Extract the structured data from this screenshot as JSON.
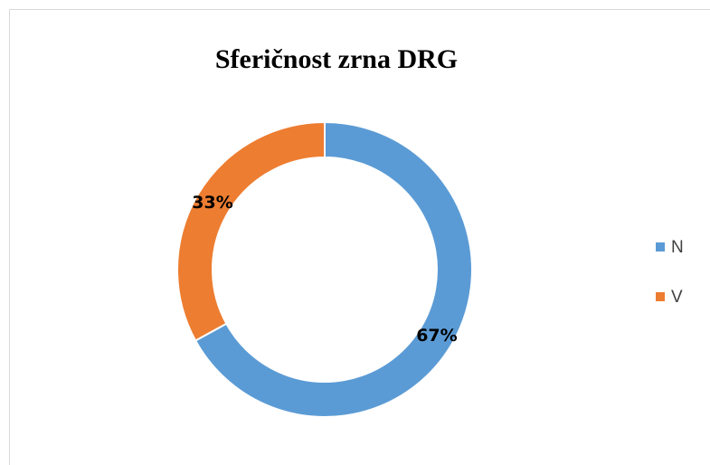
{
  "chart_data": {
    "type": "donut",
    "title": "Sferičnost zrna DRG",
    "categories": [
      "N",
      "V"
    ],
    "values": [
      67,
      33
    ],
    "value_labels": [
      "67%",
      "33%"
    ],
    "colors": [
      "#5b9bd5",
      "#ed7d31"
    ],
    "legend": "right"
  }
}
